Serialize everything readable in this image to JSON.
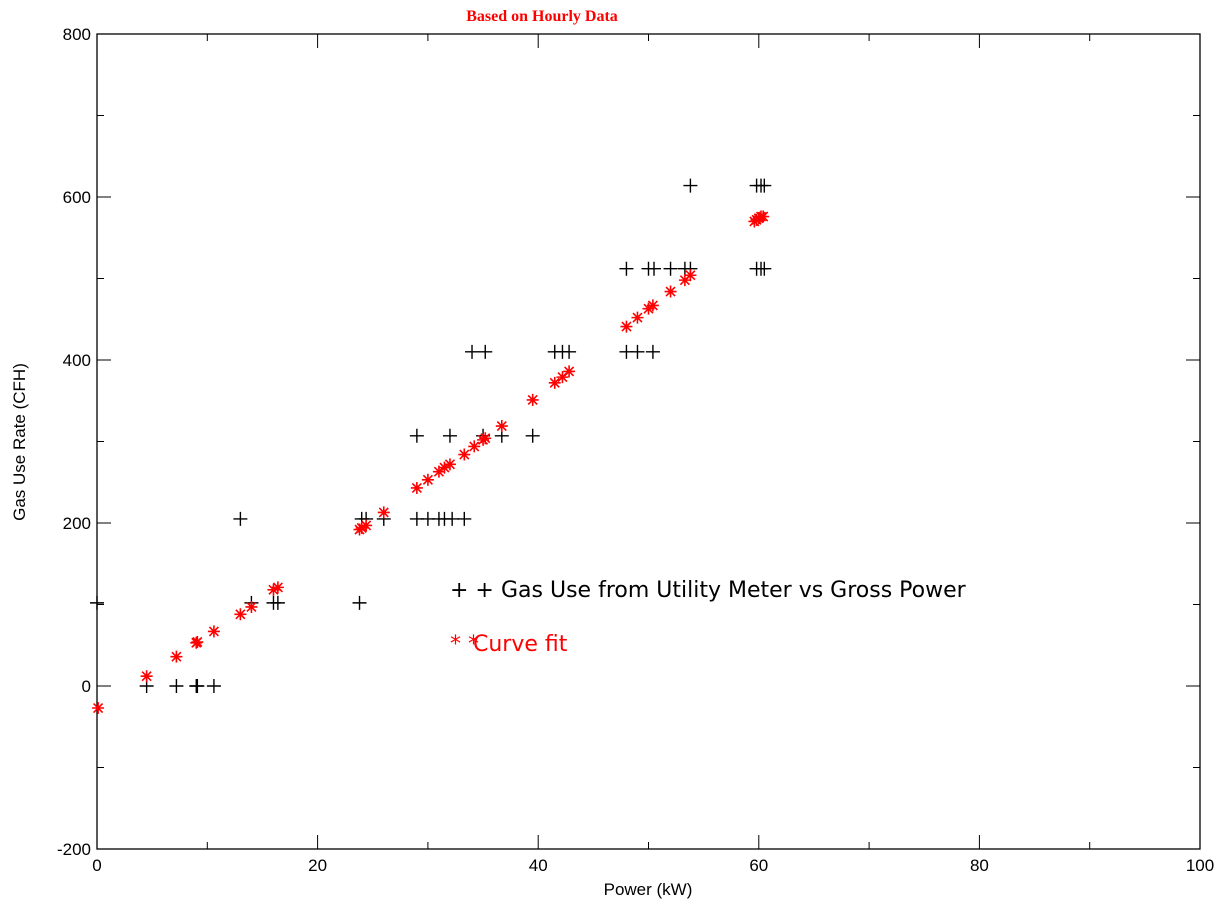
{
  "chart_data": {
    "type": "scatter",
    "title": "Based on Hourly Data",
    "xlabel": "Power (kW)",
    "ylabel": "Gas Use Rate (CFH)",
    "xlim": [
      0,
      100
    ],
    "ylim": [
      -200,
      800
    ],
    "x_ticks": [
      "0",
      "20",
      "40",
      "60",
      "80",
      "100"
    ],
    "y_ticks": [
      "-200",
      "0",
      "200",
      "400",
      "600",
      "800"
    ],
    "grid": false,
    "legend_placement": "center-right",
    "colors": {
      "meter": "#000000",
      "fit": "#ff0000",
      "title": "#ff0000"
    },
    "series": [
      {
        "name": "Gas Use from Utility Meter vs Gross Power",
        "marker": "+",
        "color": "#000000",
        "legend_marker": "+ +",
        "points": [
          [
            0,
            102
          ],
          [
            4.5,
            0
          ],
          [
            7.2,
            0
          ],
          [
            9,
            0
          ],
          [
            9.1,
            0
          ],
          [
            10.6,
            0
          ],
          [
            13,
            205
          ],
          [
            14,
            102
          ],
          [
            16,
            102
          ],
          [
            16.4,
            102
          ],
          [
            23.8,
            102
          ],
          [
            24,
            205
          ],
          [
            24.4,
            205
          ],
          [
            26,
            205
          ],
          [
            29,
            307
          ],
          [
            29,
            205
          ],
          [
            30,
            205
          ],
          [
            31,
            205
          ],
          [
            31.5,
            205
          ],
          [
            32.2,
            205
          ],
          [
            33.3,
            205
          ],
          [
            32,
            307
          ],
          [
            35,
            307
          ],
          [
            36.7,
            307
          ],
          [
            39.5,
            307
          ],
          [
            34,
            410
          ],
          [
            35.2,
            410
          ],
          [
            41.5,
            410
          ],
          [
            42.2,
            410
          ],
          [
            42.8,
            410
          ],
          [
            48,
            410
          ],
          [
            49,
            410
          ],
          [
            50.4,
            410
          ],
          [
            48,
            512
          ],
          [
            50,
            512
          ],
          [
            50.5,
            512
          ],
          [
            52,
            512
          ],
          [
            53.3,
            512
          ],
          [
            53.8,
            512
          ],
          [
            53.8,
            614
          ],
          [
            59.8,
            614
          ],
          [
            60.2,
            614
          ],
          [
            60.5,
            614
          ],
          [
            59.8,
            512
          ],
          [
            60.2,
            512
          ],
          [
            60.5,
            512
          ]
        ]
      },
      {
        "name": "Curve fit",
        "marker": "*",
        "color": "#ff0000",
        "legend_marker": "* *",
        "points": [
          [
            0.1,
            -27
          ],
          [
            4.5,
            12
          ],
          [
            7.2,
            36
          ],
          [
            9,
            53
          ],
          [
            9.1,
            54
          ],
          [
            10.6,
            67
          ],
          [
            13,
            88
          ],
          [
            14,
            97
          ],
          [
            16,
            118
          ],
          [
            16.4,
            121
          ],
          [
            23.8,
            192
          ],
          [
            24,
            194
          ],
          [
            24.4,
            197
          ],
          [
            26,
            213
          ],
          [
            29,
            243
          ],
          [
            30,
            253
          ],
          [
            31,
            263
          ],
          [
            31.5,
            268
          ],
          [
            32,
            272
          ],
          [
            33.3,
            284
          ],
          [
            34.2,
            294
          ],
          [
            35,
            302
          ],
          [
            35.2,
            304
          ],
          [
            36.7,
            319
          ],
          [
            39.5,
            351
          ],
          [
            41.5,
            372
          ],
          [
            42.2,
            379
          ],
          [
            42.8,
            386
          ],
          [
            48,
            441
          ],
          [
            49,
            452
          ],
          [
            50,
            463
          ],
          [
            50.4,
            467
          ],
          [
            52,
            484
          ],
          [
            53.3,
            498
          ],
          [
            53.8,
            504
          ],
          [
            59.6,
            570
          ],
          [
            59.8,
            572
          ],
          [
            60,
            574
          ],
          [
            60.2,
            576
          ],
          [
            60.4,
            576
          ]
        ]
      }
    ]
  }
}
